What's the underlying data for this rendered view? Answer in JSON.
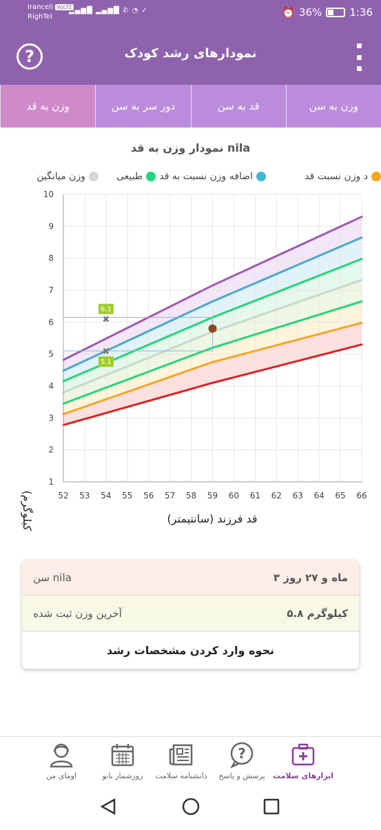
{
  "status_bar": {
    "carrier1": "Irancell",
    "volte": "VoLTE",
    "carrier2": "RighTel",
    "battery": "36%",
    "time": "1:36"
  },
  "app_bar": {
    "title": "نمودارهای رشد کودک",
    "help_icon": "question-circle-icon",
    "menu_icon": "vertical-dots-icon"
  },
  "tabs": [
    {
      "label": "وزن به سن",
      "active": false
    },
    {
      "label": "قد به سن",
      "active": false
    },
    {
      "label": "دور سر به سن",
      "active": false
    },
    {
      "label": "وزن به قد",
      "active": true
    }
  ],
  "chart": {
    "title": "نمودار وزن به قد nila"
  },
  "legend": [
    {
      "label": "وزن میانگین",
      "color": "#d6d6d6"
    },
    {
      "label": "طبیعی",
      "color": "#22d67a"
    },
    {
      "label": "اضافه وزن نسبت به قد",
      "color": "#3fb8d6"
    },
    {
      "label": "د وزن نسبت قد",
      "color": "#f5a623"
    }
  ],
  "chart_data": {
    "type": "line",
    "xlabel": "قد فرزند (سانتیمتر)",
    "ylabel": "وزن (کیلوگرم)",
    "xlim": [
      52,
      66
    ],
    "ylim": [
      1,
      10
    ],
    "x_ticks": [
      52,
      53,
      54,
      55,
      56,
      57,
      58,
      59,
      60,
      61,
      62,
      63,
      64,
      65,
      66
    ],
    "y_ticks": [
      1,
      2,
      3,
      4,
      5,
      6,
      7,
      8,
      9,
      10
    ],
    "grid": true,
    "series": [
      {
        "color": "#9b59b6",
        "fill": "#f0e2f6",
        "values": [
          [
            52,
            4.82
          ],
          [
            59,
            7.15
          ],
          [
            66,
            9.3
          ]
        ]
      },
      {
        "color": "#4aa8cc",
        "fill": "#dcf0f7",
        "values": [
          [
            52,
            4.48
          ],
          [
            59,
            6.65
          ],
          [
            66,
            8.65
          ]
        ]
      },
      {
        "color": "#22d67a",
        "fill": "#dff7e8",
        "values": [
          [
            52,
            4.15
          ],
          [
            59,
            6.15
          ],
          [
            66,
            7.98
          ]
        ]
      },
      {
        "color": "#c9d9c9",
        "fill": "#eaf6df",
        "values": [
          [
            52,
            3.8
          ],
          [
            59,
            5.7
          ],
          [
            66,
            7.32
          ]
        ]
      },
      {
        "color": "#22d67a",
        "fill": "#fdf2d6",
        "values": [
          [
            52,
            3.45
          ],
          [
            59,
            5.2
          ],
          [
            66,
            6.65
          ]
        ]
      },
      {
        "color": "#f5a623",
        "fill": "#fbd9d9",
        "values": [
          [
            52,
            3.12
          ],
          [
            59,
            4.75
          ],
          [
            66,
            5.98
          ]
        ]
      },
      {
        "color": "#e02020",
        "fill": null,
        "values": [
          [
            52,
            2.78
          ],
          [
            59,
            4.1
          ],
          [
            66,
            5.3
          ]
        ]
      }
    ],
    "markers": [
      {
        "x": 54,
        "y": 6.1,
        "label": "6.1"
      },
      {
        "x": 54,
        "y": 5.1,
        "label": "5.1"
      }
    ],
    "child_point": {
      "x": 59,
      "y": 5.8
    },
    "reference_box": {
      "x0": 52,
      "x1": 59,
      "y0": 5.1,
      "y1": 6.15
    }
  },
  "info_card": {
    "age_label": "سن nila",
    "age_value": "۳ ماه و ۲۷ روز",
    "weight_label": "آخرین وزن ثبت شده",
    "weight_value": "۵.۸ کیلوگرم",
    "howto": "نحوه وارد کردن مشخصات رشد"
  },
  "bottom_nav": [
    {
      "label": "ابزارهای سلامت",
      "icon": "medical-kit-icon",
      "active": true
    },
    {
      "label": "پرسش و پاسخ",
      "icon": "question-bubble-icon",
      "active": false
    },
    {
      "label": "دانشنامه سلامت",
      "icon": "newspaper-icon",
      "active": false
    },
    {
      "label": "روزشمار بانو",
      "icon": "calendar-icon",
      "active": false
    },
    {
      "label": "اومای من",
      "icon": "user-avatar-icon",
      "active": false
    }
  ]
}
